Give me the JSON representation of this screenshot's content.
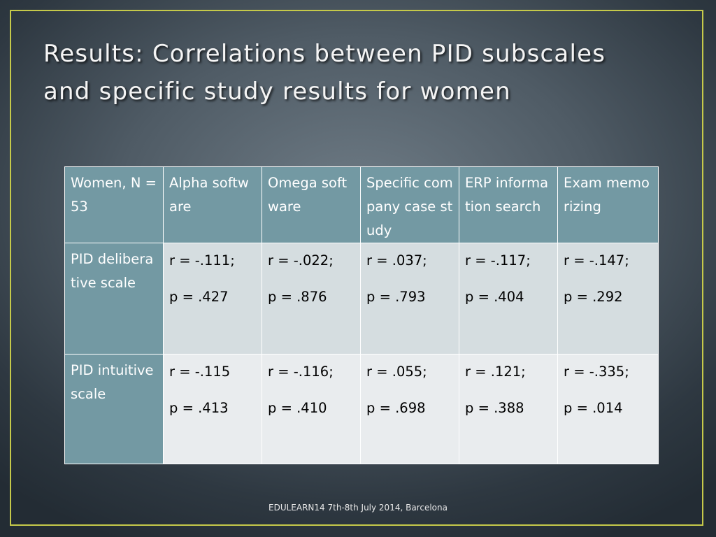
{
  "slide": {
    "title_line1": "Results: Correlations between PID subscales",
    "title_line2": "and specific study results for women",
    "footer": "EDULEARN14 7th-8th July 2014, Barcelona"
  },
  "colors": {
    "header_fill": "#7399a3",
    "row1_fill": "#d5dde0",
    "row2_fill": "#e9ecee",
    "frame_border": "#c5c94a"
  },
  "table": {
    "corner": "Women, N = 53",
    "columns": [
      "Alpha software",
      "Omega software",
      "Specific company case study",
      "ERP information search",
      "Exam memorizing"
    ],
    "rows": [
      {
        "label": "PID deliberative scale",
        "cells": [
          {
            "r": "r = -.111;",
            "p": "p = .427"
          },
          {
            "r": "r = -.022;",
            "p": "p = .876"
          },
          {
            "r": "r = .037;",
            "p": "p = .793"
          },
          {
            "r": "r = -.117;",
            "p": "p = .404"
          },
          {
            "r": "r = -.147;",
            "p": "p = .292"
          }
        ]
      },
      {
        "label": "PID intuitive scale",
        "cells": [
          {
            "r": "r = -.115",
            "p": "p = .413"
          },
          {
            "r": "r = -.116;",
            "p": "p = .410"
          },
          {
            "r": "r = .055;",
            "p": "p = .698"
          },
          {
            "r": "r = .121;",
            "p": "p = .388"
          },
          {
            "r": "r = -.335;",
            "p": "p = .014"
          }
        ]
      }
    ]
  }
}
